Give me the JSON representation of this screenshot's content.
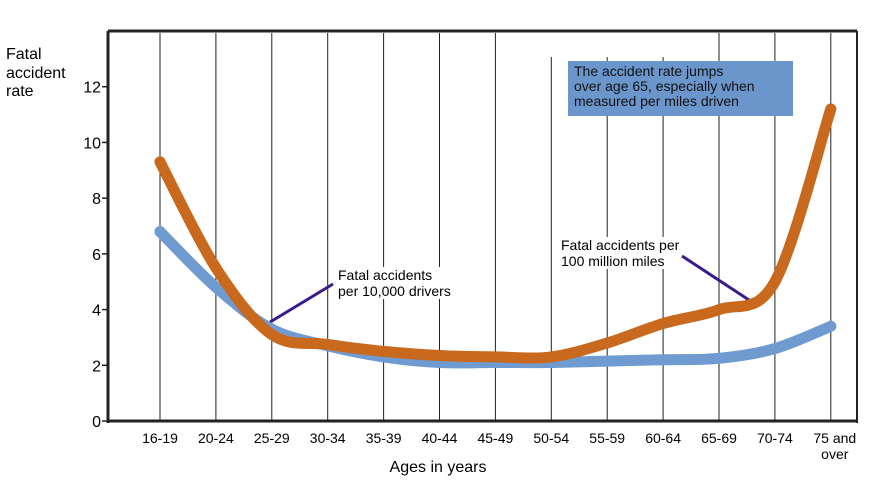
{
  "chart_data": {
    "type": "line",
    "ylabel": [
      "Fatal",
      "accident",
      "rate"
    ],
    "xlabel": "Ages in years",
    "categories": [
      "16-19",
      "20-24",
      "25-29",
      "30-34",
      "35-39",
      "40-44",
      "45-49",
      "50-54",
      "55-59",
      "60-64",
      "65-69",
      "70-74",
      "75 and over"
    ],
    "category_lines": [
      [
        "16-19"
      ],
      [
        "20-24"
      ],
      [
        "25-29"
      ],
      [
        "30-34"
      ],
      [
        "35-39"
      ],
      [
        "40-44"
      ],
      [
        "45-49"
      ],
      [
        "50-54"
      ],
      [
        "55-59"
      ],
      [
        "60-64"
      ],
      [
        "65-69"
      ],
      [
        "70-74"
      ],
      [
        "75 and",
        "over"
      ]
    ],
    "ylim": [
      0,
      14
    ],
    "yticks": [
      0,
      2,
      4,
      6,
      8,
      10,
      12
    ],
    "grid": "vertical lines",
    "series": [
      {
        "name": "Fatal accidents per 10,000 drivers",
        "color": "#6f9bd1",
        "values": [
          6.8,
          4.8,
          3.3,
          2.7,
          2.3,
          2.1,
          2.1,
          2.1,
          2.15,
          2.2,
          2.25,
          2.6,
          3.4
        ]
      },
      {
        "name": "Fatal accidents per 100 million miles",
        "color": "#c8691e",
        "values": [
          9.3,
          5.5,
          3.1,
          2.75,
          2.5,
          2.35,
          2.3,
          2.3,
          2.8,
          3.5,
          4.0,
          5.0,
          11.2
        ]
      }
    ],
    "annotations": {
      "callout": [
        "The accident rate jumps",
        "over age 65, especially when",
        "measured per miles driven"
      ],
      "drivers_label": [
        "Fatal accidents",
        "per 10,000 drivers"
      ],
      "miles_label": [
        "Fatal accidents per",
        "100 million miles"
      ]
    },
    "colors": {
      "pointer_line": "#3a1a8c",
      "callout_bg": "#6b96cc"
    }
  }
}
